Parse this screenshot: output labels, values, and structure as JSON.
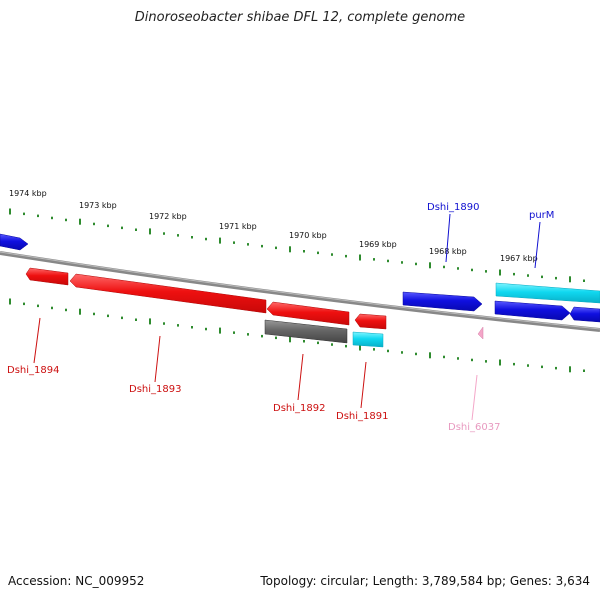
{
  "title": "Dinoroseobacter shibae DFL 12, complete genome",
  "footer": {
    "accession": "Accession: NC_009952",
    "summary": "Topology: circular; Length: 3,789,584 bp; Genes: 3,634"
  },
  "colors": {
    "forward_gene": "#1010e0",
    "forward_rna": "#10d8f0",
    "reverse_gene": "#ee1010",
    "reverse_pseudo": "#666666",
    "reverse_rna": "#10d8f0",
    "marker": "#f4a6c8",
    "tick": "#2e8b2e",
    "backbone": "#888888",
    "forward_label": "#1010d0",
    "reverse_label": "#cc1010",
    "marker_label": "#e89ac0"
  },
  "scale_labels": [
    "1974 kbp",
    "1973 kbp",
    "1972 kbp",
    "1971 kbp",
    "1970 kbp",
    "1969 kbp",
    "1968 kbp",
    "1967 kbp"
  ],
  "gene_labels": {
    "forward": [
      "Dshi_1890",
      "purM"
    ],
    "reverse": [
      "Dshi_1894",
      "Dshi_1893",
      "Dshi_1892",
      "Dshi_1891"
    ],
    "marker": [
      "Dshi_6037"
    ]
  }
}
